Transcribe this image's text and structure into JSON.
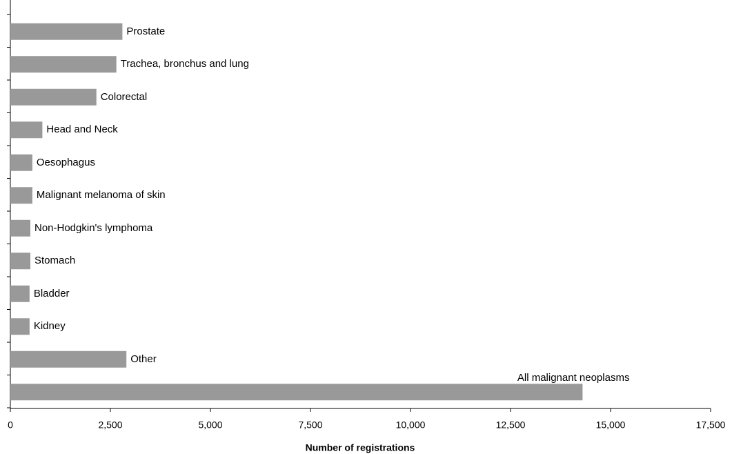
{
  "chart_data": {
    "type": "bar",
    "orientation": "horizontal",
    "x_label": "Number of registrations",
    "categories": [
      "Prostate",
      "Trachea, bronchus and lung",
      "Colorectal",
      "Head and Neck",
      "Oesophagus",
      "Malignant melanoma of skin",
      "Non-Hodgkin's lymphoma",
      "Stomach",
      "Bladder",
      "Kidney",
      "Other",
      "All malignant neoplasms"
    ],
    "values": [
      2800,
      2650,
      2150,
      800,
      550,
      550,
      500,
      500,
      480,
      480,
      2900,
      14300
    ],
    "color": "#999999",
    "xlim": [
      0,
      17500
    ],
    "xticks": [
      0,
      {
        "value": 2500,
        "label": "2,500"
      },
      {
        "value": 5000,
        "label": "5,000"
      },
      {
        "value": 7500,
        "label": "7,500"
      },
      {
        "value": 10000,
        "label": "10,000"
      },
      {
        "value": 12500,
        "label": "12,500"
      },
      {
        "value": 15000,
        "label": "15,000"
      },
      {
        "value": 17500,
        "label": "17,500"
      }
    ]
  }
}
